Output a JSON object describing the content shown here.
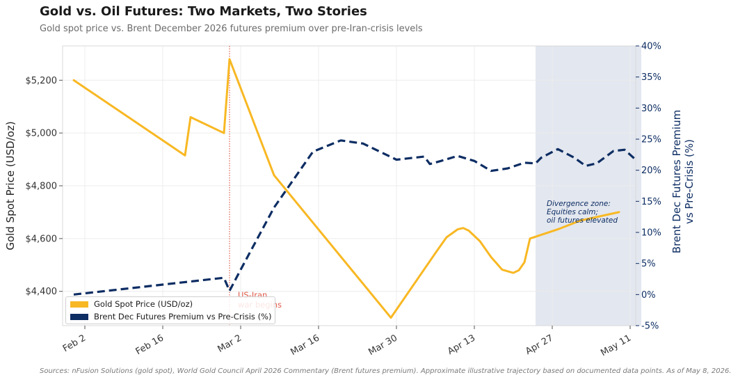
{
  "header": {
    "title": "Gold vs. Oil Futures: Two Markets, Two Stories",
    "subtitle": "Gold spot price vs. Brent December 2026 futures premium over pre-Iran-crisis levels"
  },
  "footer": {
    "source": "Sources: nFusion Solutions (gold spot), World Gold Council April 2026 Commentary (Brent futures premium).  Approximate illustrative trajectory based on documented data points.  As of May 8, 2026."
  },
  "colors": {
    "gold": "#f8b823",
    "brent": "#0d2d63",
    "event_line": "#e05a4a",
    "shade": "#e3e7ef",
    "right_axis": "#0d2d63"
  },
  "chart_data": {
    "type": "line",
    "title": "Gold vs. Oil Futures: Two Markets, Two Stories",
    "subtitle": "Gold spot price vs. Brent December 2026 futures premium over pre-Iran-crisis levels",
    "x_axis": {
      "ticks": [
        "2026-02-02",
        "2026-02-16",
        "2026-03-02",
        "2026-03-16",
        "2026-03-30",
        "2026-04-13",
        "2026-04-27",
        "2026-05-11"
      ],
      "tick_labels": [
        "Feb 2",
        "Feb 16",
        "Mar 2",
        "Mar 16",
        "Mar 30",
        "Apr 13",
        "Apr 27",
        "May 11"
      ],
      "range": [
        "2026-01-29",
        "2026-05-12"
      ]
    },
    "y_left": {
      "label": "Gold Spot Price (USD/oz)",
      "range": [
        4270,
        5330
      ],
      "ticks": [
        4400,
        4600,
        4800,
        5000,
        5200
      ],
      "tick_labels": [
        "$4,400",
        "$4,600",
        "$4,800",
        "$5,000",
        "$5,200"
      ]
    },
    "y_right": {
      "label": "Brent Dec Futures Premium vs Pre-Crisis (%)",
      "range": [
        -5,
        40
      ],
      "ticks": [
        -5,
        0,
        5,
        10,
        15,
        20,
        25,
        30,
        35,
        40
      ],
      "tick_labels": [
        "-5%",
        "0%",
        "5%",
        "10%",
        "15%",
        "20%",
        "25%",
        "30%",
        "35%",
        "40%"
      ]
    },
    "grid": true,
    "legend_position": "lower-left",
    "series": [
      {
        "name": "Gold Spot Price (USD/oz)",
        "axis": "left",
        "style": "solid",
        "points": [
          [
            "2026-01-31",
            5200
          ],
          [
            "2026-02-20",
            4915
          ],
          [
            "2026-02-21",
            5060
          ],
          [
            "2026-02-27",
            5000
          ],
          [
            "2026-02-28",
            5280
          ],
          [
            "2026-03-08",
            4840
          ],
          [
            "2026-03-29",
            4300
          ],
          [
            "2026-04-06",
            4545
          ],
          [
            "2026-04-08",
            4605
          ],
          [
            "2026-04-10",
            4635
          ],
          [
            "2026-04-11",
            4640
          ],
          [
            "2026-04-12",
            4630
          ],
          [
            "2026-04-14",
            4590
          ],
          [
            "2026-04-16",
            4530
          ],
          [
            "2026-04-18",
            4482
          ],
          [
            "2026-04-20",
            4470
          ],
          [
            "2026-04-21",
            4480
          ],
          [
            "2026-04-22",
            4510
          ],
          [
            "2026-04-23",
            4600
          ],
          [
            "2026-04-28",
            4635
          ],
          [
            "2026-05-02",
            4668
          ],
          [
            "2026-05-09",
            4700
          ]
        ]
      },
      {
        "name": "Brent Dec Futures Premium vs Pre-Crisis (%)",
        "axis": "right",
        "style": "dashed",
        "points": [
          [
            "2026-01-31",
            0
          ],
          [
            "2026-02-27",
            2.7
          ],
          [
            "2026-02-28",
            0.6
          ],
          [
            "2026-03-02",
            4
          ],
          [
            "2026-03-08",
            14
          ],
          [
            "2026-03-15",
            23
          ],
          [
            "2026-03-20",
            24.8
          ],
          [
            "2026-03-24",
            24.3
          ],
          [
            "2026-03-30",
            21.7
          ],
          [
            "2026-04-02",
            22
          ],
          [
            "2026-04-04",
            22.2
          ],
          [
            "2026-04-05",
            21
          ],
          [
            "2026-04-07",
            21.5
          ],
          [
            "2026-04-10",
            22.3
          ],
          [
            "2026-04-13",
            21.5
          ],
          [
            "2026-04-16",
            19.9
          ],
          [
            "2026-04-19",
            20.3
          ],
          [
            "2026-04-22",
            21.2
          ],
          [
            "2026-04-24",
            21.1
          ],
          [
            "2026-04-25",
            22
          ],
          [
            "2026-04-28",
            23.4
          ],
          [
            "2026-05-01",
            22
          ],
          [
            "2026-05-03",
            20.7
          ],
          [
            "2026-05-05",
            21.1
          ],
          [
            "2026-05-08",
            23.1
          ],
          [
            "2026-05-10",
            23.3
          ],
          [
            "2026-05-12",
            21.7
          ]
        ]
      }
    ],
    "annotations": [
      {
        "kind": "vline",
        "x": "2026-02-28",
        "text_line1": "US-Iran",
        "text_line2": "war begins"
      },
      {
        "kind": "shaded_span",
        "x_start": "2026-04-24",
        "x_end": "2026-05-13",
        "text_line1": "Divergence zone:",
        "text_line2": "Equities calm;",
        "text_line3": "oil futures elevated"
      }
    ]
  }
}
